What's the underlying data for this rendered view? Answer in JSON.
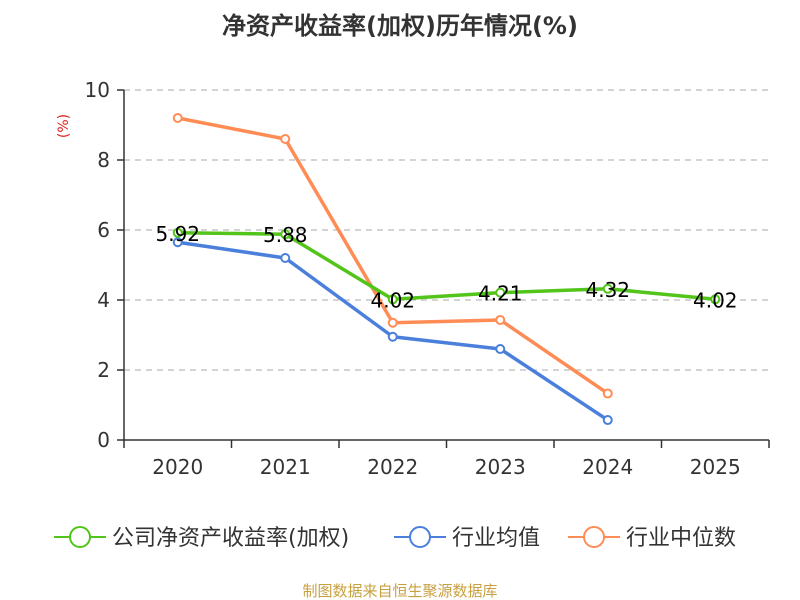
{
  "chart_data": {
    "type": "line",
    "title": "净资产收益率(加权)历年情况(%)",
    "ylabel": "(%)",
    "xlabel": "",
    "categories": [
      "2020",
      "2021",
      "2022",
      "2023",
      "2024",
      "2025"
    ],
    "ylim": [
      0,
      10
    ],
    "yticks": [
      0,
      2,
      4,
      6,
      8,
      10
    ],
    "grid": true,
    "legend_position": "bottom",
    "series": [
      {
        "name": "公司净资产收益率(加权)",
        "color": "#52c41a",
        "values": [
          5.92,
          5.88,
          4.02,
          4.21,
          4.32,
          4.02
        ],
        "labels": [
          "5.92",
          "5.88",
          "4.02",
          "4.21",
          "4.32",
          "4.02"
        ]
      },
      {
        "name": "行业均值",
        "color": "#4a7fdc",
        "values": [
          5.65,
          5.2,
          2.95,
          2.6,
          0.57,
          null
        ]
      },
      {
        "name": "行业中位数",
        "color": "#ff8c55",
        "values": [
          9.2,
          8.6,
          3.35,
          3.43,
          1.33,
          null
        ]
      }
    ],
    "source": "制图数据来自恒生聚源数据库"
  }
}
